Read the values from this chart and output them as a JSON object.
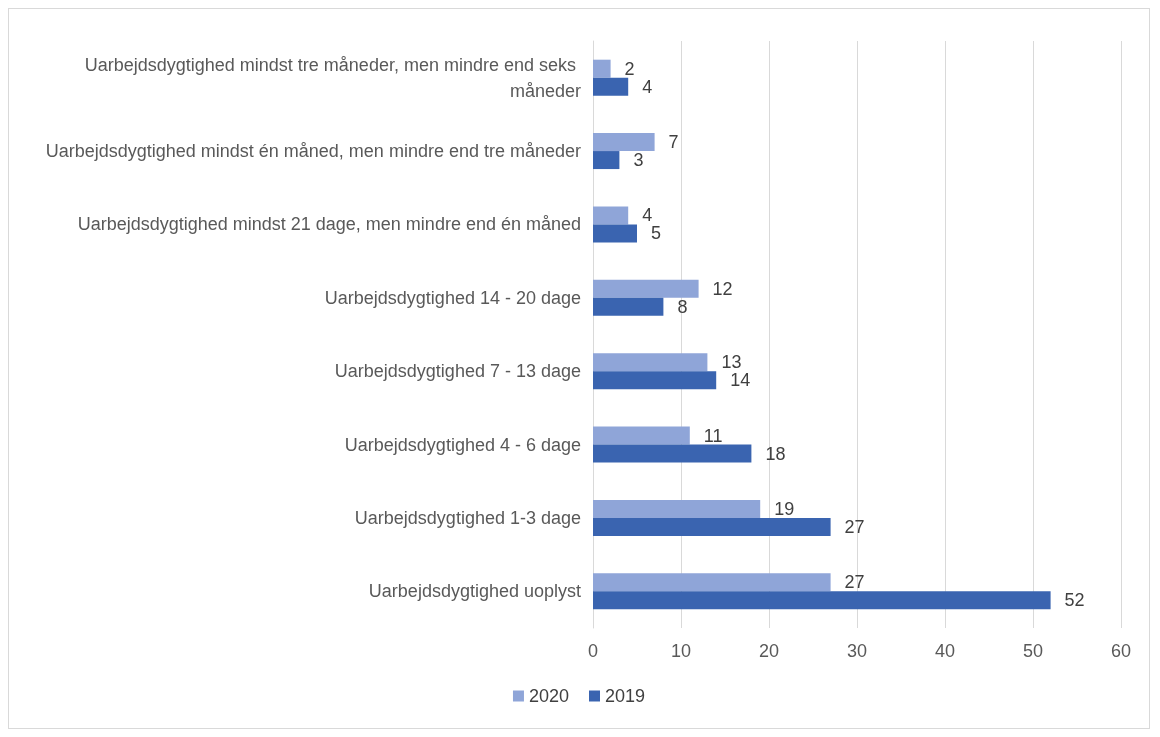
{
  "chart_data": {
    "type": "bar",
    "orientation": "horizontal",
    "categories": [
      "Uarbejdsdygtighed mindst tre måneder, men mindre end seks måneder",
      "Uarbejdsdygtighed mindst én måned, men mindre end tre måneder",
      "Uarbejdsdygtighed mindst 21 dage, men mindre end én måned",
      "Uarbejdsdygtighed 14 - 20 dage",
      "Uarbejdsdygtighed 7 - 13 dage",
      "Uarbejdsdygtighed 4 - 6 dage",
      "Uarbejdsdygtighed 1-3 dage",
      "Uarbejdsdygtighed uoplyst"
    ],
    "series": [
      {
        "name": "2020",
        "color": "#8fa5d8",
        "values": [
          2,
          7,
          4,
          12,
          13,
          11,
          19,
          27
        ]
      },
      {
        "name": "2019",
        "color": "#3a64b0",
        "values": [
          4,
          3,
          5,
          8,
          14,
          18,
          27,
          52
        ]
      }
    ],
    "xlim": [
      0,
      60
    ],
    "xticks": [
      0,
      10,
      20,
      30,
      40,
      50,
      60
    ],
    "grid": "x",
    "legend": "bottom",
    "data_labels": true
  }
}
